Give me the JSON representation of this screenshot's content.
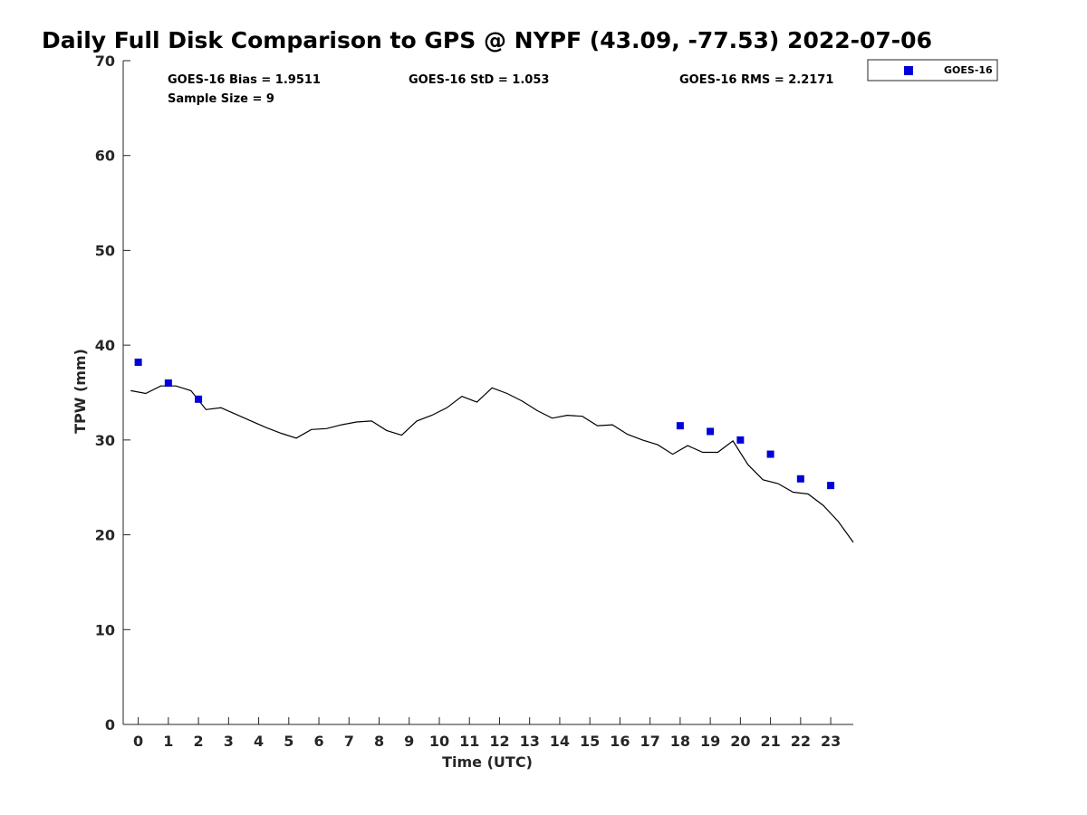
{
  "chart_data": {
    "type": "scatter",
    "title": "Daily Full Disk Comparison to GPS @ NYPF (43.09, -77.53) 2022-07-06",
    "xlabel": "Time (UTC)",
    "ylabel": "TPW (mm)",
    "xlim": [
      -0.5,
      23.75
    ],
    "ylim": [
      0,
      70
    ],
    "xticks": [
      0,
      1,
      2,
      3,
      4,
      5,
      6,
      7,
      8,
      9,
      10,
      11,
      12,
      13,
      14,
      15,
      16,
      17,
      18,
      19,
      20,
      21,
      22,
      23
    ],
    "yticks": [
      0,
      10,
      20,
      30,
      40,
      50,
      60,
      70
    ],
    "grid": false,
    "legend": {
      "placement": "outside-top-right",
      "entries": [
        "GOES-16"
      ]
    },
    "stats": {
      "bias": "GOES-16 Bias = 1.9511",
      "std": "GOES-16 StD = 1.053",
      "rms": "GOES-16 RMS = 2.2171",
      "sample": "Sample Size = 9"
    },
    "series": [
      {
        "name": "GOES-16",
        "kind": "points",
        "color": "#0000d9",
        "x": [
          0,
          1,
          2,
          18,
          19,
          20,
          21,
          22,
          23
        ],
        "y": [
          38.2,
          36.0,
          34.3,
          31.5,
          30.9,
          30.0,
          28.5,
          25.9,
          25.2
        ]
      },
      {
        "kind": "line",
        "color": "#000000",
        "x": [
          -0.25,
          0.25,
          0.75,
          1.25,
          1.75,
          2.25,
          2.75,
          3.25,
          3.75,
          4.25,
          4.75,
          5.25,
          5.75,
          6.25,
          6.75,
          7.25,
          7.75,
          8.25,
          8.75,
          9.25,
          9.75,
          10.25,
          10.75,
          11.25,
          11.75,
          12.25,
          12.75,
          13.25,
          13.75,
          14.25,
          14.75,
          15.25,
          15.75,
          16.25,
          16.75,
          17.25,
          17.75,
          18.25,
          18.75,
          19.25,
          19.75,
          20.25,
          20.75,
          21.25,
          21.75,
          22.25,
          22.75,
          23.25,
          23.75
        ],
        "y": [
          35.2,
          34.9,
          35.7,
          35.7,
          35.2,
          33.2,
          33.4,
          32.7,
          32.0,
          31.3,
          30.7,
          30.2,
          31.1,
          31.2,
          31.6,
          31.9,
          32.0,
          31.0,
          30.5,
          32.0,
          32.6,
          33.4,
          34.6,
          34.0,
          35.5,
          34.9,
          34.1,
          33.1,
          32.3,
          32.6,
          32.5,
          31.5,
          31.6,
          30.6,
          30.0,
          29.5,
          28.5,
          29.4,
          28.7,
          28.7,
          29.9,
          27.4,
          25.8,
          25.4,
          24.5,
          24.3,
          23.1,
          21.4,
          19.2
        ]
      }
    ]
  }
}
